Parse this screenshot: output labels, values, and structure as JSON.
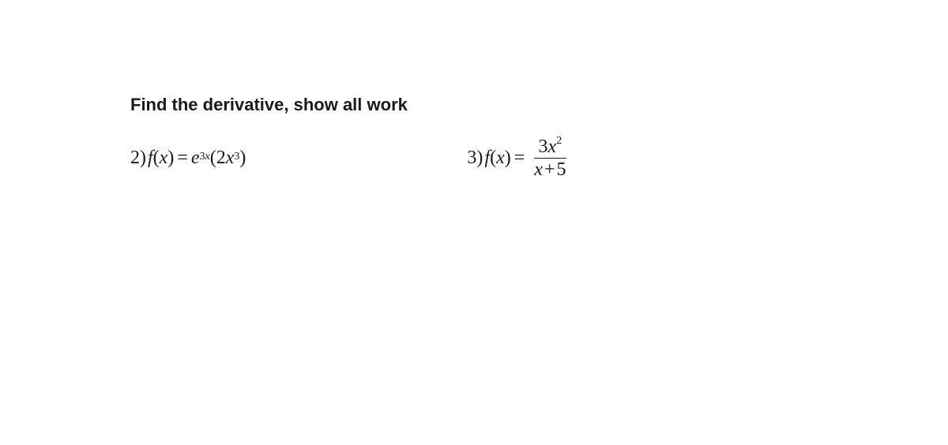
{
  "heading": "Find the derivative, show all work",
  "problems": {
    "p2": {
      "number": "2)",
      "func_prefix": "f",
      "func_arg_open": "(",
      "func_var": "x",
      "func_arg_close": ")",
      "equals": "=",
      "e_base": "e",
      "e_exp_coeff": "3",
      "e_exp_var": "x",
      "paren_open": "(",
      "inner_coeff": "2",
      "inner_var": "x",
      "inner_exp": "3",
      "paren_close": ")"
    },
    "p3": {
      "number": "3)",
      "func_prefix": "f",
      "func_arg_open": "(",
      "func_var": "x",
      "func_arg_close": ")",
      "equals": "=",
      "num_coeff": "3",
      "num_var": "x",
      "num_exp": "2",
      "den_var": "x",
      "den_plus": "+",
      "den_const": "5"
    }
  },
  "style": {
    "text_color": "#1a1a1a",
    "background_color": "#ffffff",
    "heading_fontsize": 22,
    "math_fontsize": 24,
    "heading_font": "Arial",
    "math_font": "Times New Roman"
  }
}
